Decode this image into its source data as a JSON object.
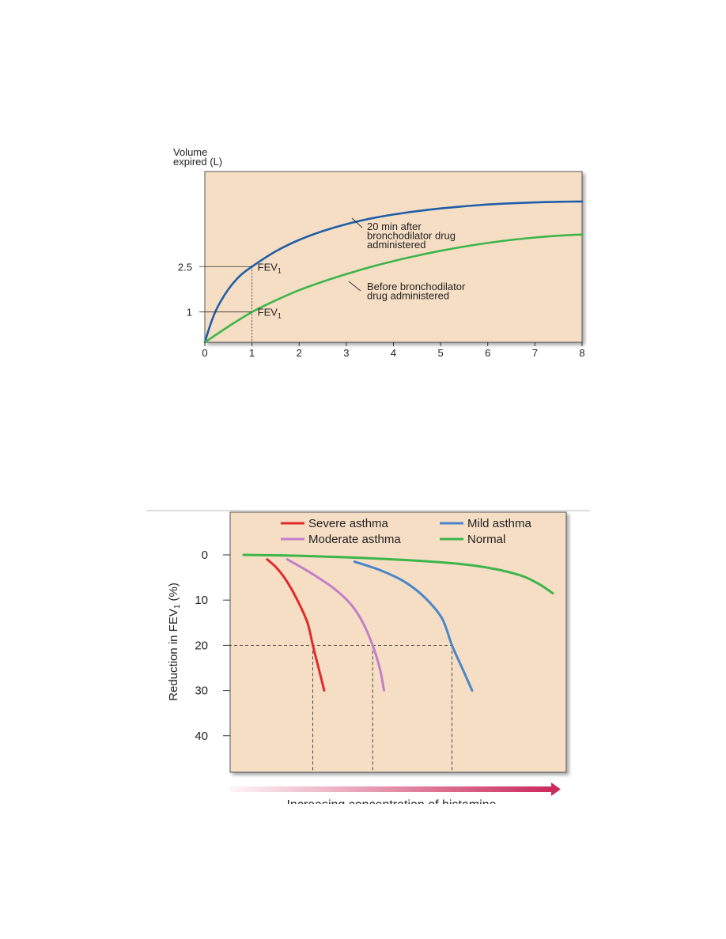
{
  "chart_data": [
    {
      "type": "line",
      "ylabel_line1": "Volume",
      "ylabel_line2": "expired (L)",
      "xlim": [
        0,
        8
      ],
      "x_ticks": [
        "0",
        "1",
        "2",
        "3",
        "4",
        "5",
        "6",
        "7",
        "8"
      ],
      "y_tick_values": [
        1,
        2.5
      ],
      "y_tick_labels": [
        "1",
        "2.5"
      ],
      "background_color": "#f6dec5",
      "series": [
        {
          "color": "#1f5fa8",
          "x": [
            0,
            0.1,
            0.25,
            0.5,
            0.75,
            1,
            1.5,
            2,
            2.5,
            3,
            3.5,
            4,
            4.5,
            5,
            5.5,
            6,
            6.5,
            7,
            7.5,
            8
          ],
          "y": [
            0,
            0.5,
            1.1,
            1.75,
            2.2,
            2.5,
            3.0,
            3.38,
            3.67,
            3.9,
            4.08,
            4.22,
            4.33,
            4.42,
            4.49,
            4.55,
            4.59,
            4.62,
            4.64,
            4.65
          ],
          "annotation": [
            "20 min after",
            "bronchodilator drug",
            "administered"
          ]
        },
        {
          "color": "#3cb54a",
          "x": [
            0,
            0.5,
            1,
            1.5,
            2,
            2.5,
            3,
            3.5,
            4,
            4.5,
            5,
            5.5,
            6,
            6.5,
            7,
            7.5,
            8
          ],
          "y": [
            0,
            0.52,
            1.0,
            1.38,
            1.72,
            2.0,
            2.25,
            2.48,
            2.68,
            2.86,
            3.02,
            3.16,
            3.28,
            3.38,
            3.46,
            3.52,
            3.56
          ],
          "annotation": [
            "Before bronchodilator",
            "drug administered"
          ]
        }
      ],
      "markers": [
        {
          "label_main": "FEV",
          "label_sub": "1",
          "x": 1,
          "y": 2.5
        },
        {
          "label_main": "FEV",
          "label_sub": "1",
          "x": 1,
          "y": 1
        }
      ]
    },
    {
      "type": "line",
      "ylabel_main": "Reduction in FEV",
      "ylabel_sub": "1",
      "ylabel_suffix": " (%)",
      "ylim": [
        0,
        48
      ],
      "y_ticks": [
        "0",
        "10",
        "20",
        "30",
        "40"
      ],
      "xlabel": "Increasing concentration of histamine",
      "xlim": [
        0,
        1
      ],
      "background_color": "#f6dec5",
      "legend": [
        {
          "name": "Severe asthma",
          "color": "#e02a2a"
        },
        {
          "name": "Mild asthma",
          "color": "#4a86c8"
        },
        {
          "name": "Moderate asthma",
          "color": "#c27fc9"
        },
        {
          "name": "Normal",
          "color": "#3cb54a"
        }
      ],
      "series": [
        {
          "name": "Severe asthma",
          "color": "#e02a2a",
          "x": [
            0.11,
            0.14,
            0.17,
            0.2,
            0.23,
            0.246,
            0.263,
            0.28
          ],
          "y": [
            1,
            3,
            6,
            10,
            15,
            20,
            25,
            30
          ]
        },
        {
          "name": "Moderate asthma",
          "color": "#c27fc9",
          "x": [
            0.17,
            0.24,
            0.31,
            0.36,
            0.395,
            0.424,
            0.445,
            0.458
          ],
          "y": [
            1,
            4,
            7.5,
            11,
            15,
            20,
            25,
            30
          ]
        },
        {
          "name": "Mild asthma",
          "color": "#4a86c8",
          "x": [
            0.37,
            0.45,
            0.52,
            0.58,
            0.63,
            0.66,
            0.69,
            0.72
          ],
          "y": [
            1.5,
            3.5,
            6,
            9.5,
            14,
            20,
            25,
            30
          ]
        },
        {
          "name": "Normal",
          "color": "#3cb54a",
          "x": [
            0.04,
            0.2,
            0.4,
            0.6,
            0.72,
            0.8,
            0.87,
            0.92,
            0.96
          ],
          "y": [
            0,
            0.2,
            0.7,
            1.5,
            2.3,
            3.3,
            4.7,
            6.5,
            8.5
          ]
        }
      ],
      "reference_y": 20,
      "reference_x": [
        0.246,
        0.424,
        0.66
      ],
      "arrow_color": "#cc2a5c"
    }
  ]
}
